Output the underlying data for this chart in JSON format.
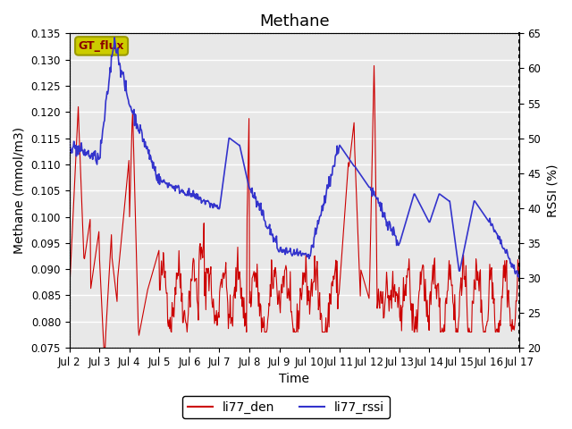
{
  "title": "Methane",
  "xlabel": "Time",
  "ylabel_left": "Methane (mmol/m3)",
  "ylabel_right": "RSSI (%)",
  "ylim_left": [
    0.075,
    0.135
  ],
  "ylim_right": [
    20,
    65
  ],
  "yticks_left": [
    0.075,
    0.08,
    0.085,
    0.09,
    0.095,
    0.1,
    0.105,
    0.11,
    0.115,
    0.12,
    0.125,
    0.13,
    0.135
  ],
  "yticks_right": [
    20,
    25,
    30,
    35,
    40,
    45,
    50,
    55,
    60,
    65
  ],
  "xtick_labels": [
    "Jul 2",
    "Jul 3",
    "Jul 4",
    "Jul 5",
    "Jul 6",
    "Jul 7",
    "Jul 8",
    "Jul 9",
    "Jul 10",
    "Jul 11",
    "Jul 12",
    "Jul 13",
    "Jul 14",
    "Jul 15",
    "Jul 16",
    "Jul 17"
  ],
  "legend_labels": [
    "li77_den",
    "li77_rssi"
  ],
  "color_den": "#cc0000",
  "color_rssi": "#3333cc",
  "gt_flux_label": "GT_flux",
  "gt_flux_bg": "#cccc00",
  "gt_flux_border": "#999900",
  "background_color": "#e8e8e8",
  "grid_color": "#ffffff",
  "title_fontsize": 13,
  "axis_label_fontsize": 10,
  "tick_fontsize": 8.5,
  "legend_fontsize": 10
}
